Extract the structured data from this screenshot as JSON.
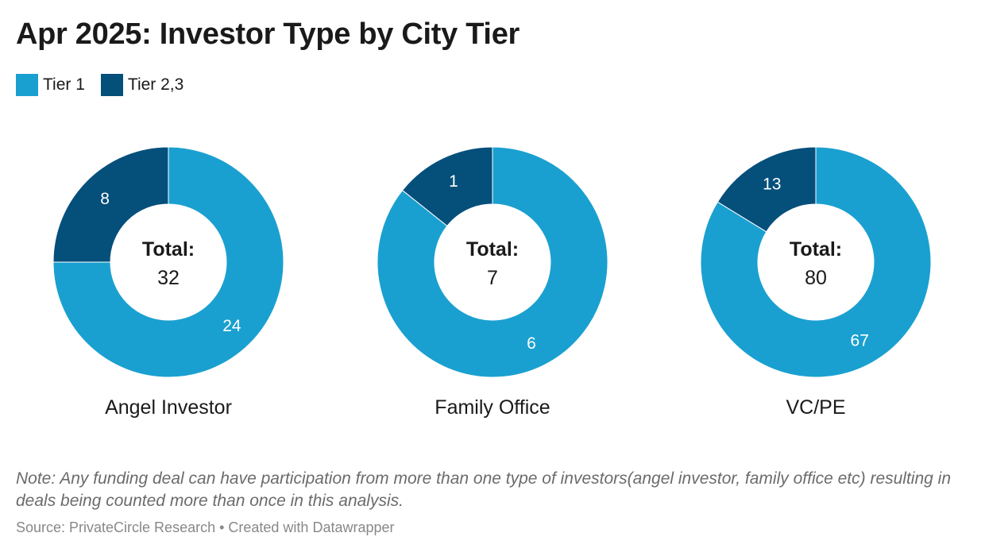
{
  "title": "Apr 2025: Investor Type by City Tier",
  "legend": [
    {
      "label": "Tier 1",
      "color": "#1aa0d0"
    },
    {
      "label": "Tier 2,3",
      "color": "#054f7b"
    }
  ],
  "chart_data": {
    "type": "pie",
    "variant": "donut",
    "series_names": [
      "Tier 1",
      "Tier 2,3"
    ],
    "colors": {
      "Tier 1": "#1aa0d0",
      "Tier 2,3": "#054f7b"
    },
    "center_label": "Total:",
    "charts": [
      {
        "name": "Angel Investor",
        "tier1": 24,
        "tier23": 8,
        "total": 32
      },
      {
        "name": "Family Office",
        "tier1": 6,
        "tier23": 1,
        "total": 7
      },
      {
        "name": "VC/PE",
        "tier1": 67,
        "tier23": 13,
        "total": 80
      }
    ]
  },
  "note": "Note: Any funding deal can have participation from more than one type of investors(angel investor, family office etc) resulting in deals being counted more than once in this analysis.",
  "source": "Source: PrivateCircle Research • Created with Datawrapper"
}
